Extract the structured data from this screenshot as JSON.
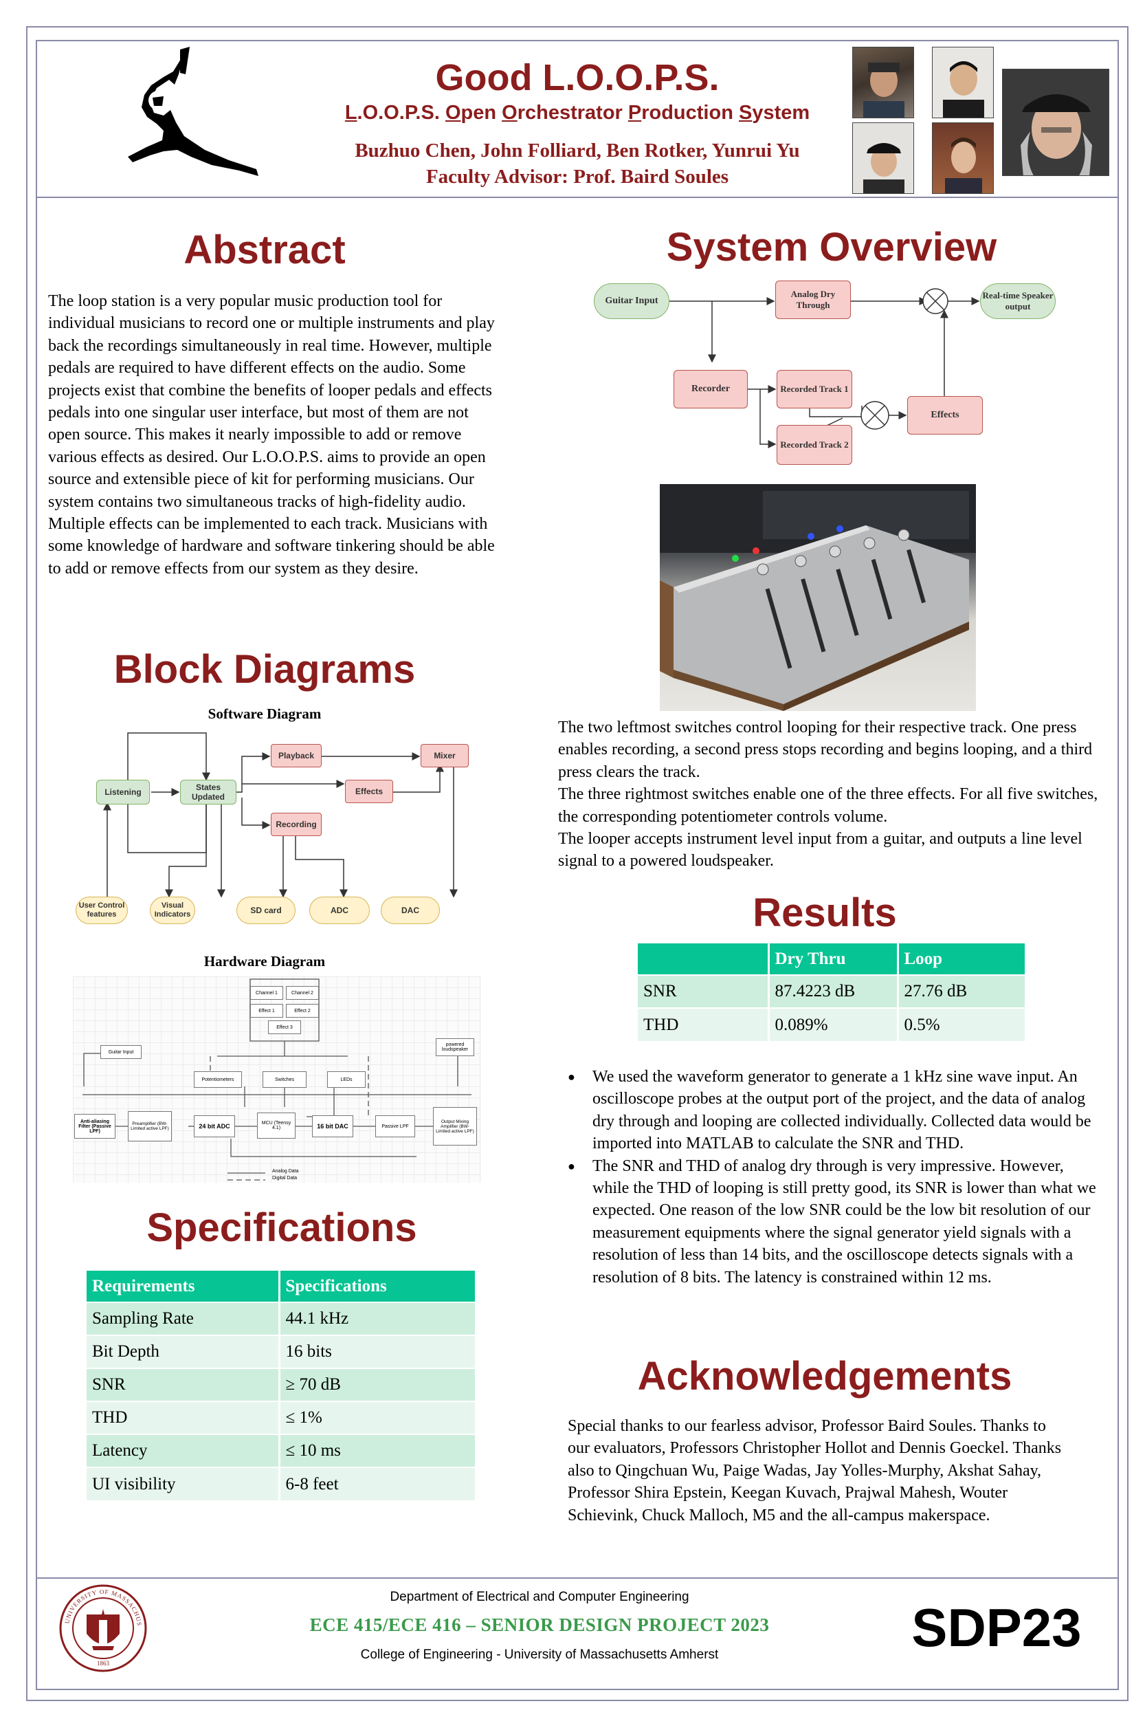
{
  "header": {
    "title": "Good L.O.O.P.S.",
    "subtitle_parts": [
      "L",
      ".O.O.P.S. ",
      "O",
      "pen ",
      "O",
      "rchestrator ",
      "P",
      "roduction ",
      "S",
      "ystem"
    ],
    "authors": "Buzhuo Chen, John Folliard, Ben Rotker, Yunrui Yu",
    "advisor": "Faculty Advisor: Prof. Baird Soules"
  },
  "abstract": {
    "title": "Abstract",
    "text": "The loop station is a very popular music production tool for individual musicians to record one or multiple instruments and play back the recordings simultaneously in real time. However, multiple pedals are required to have different effects on the audio. Some projects exist that combine the benefits of looper pedals and effects pedals into one singular user interface, but most of them are not open source. This makes it nearly impossible to add or remove various effects as desired. Our L.O.O.P.S. aims to provide an open source and extensible piece of kit for performing musicians. Our system contains two simultaneous tracks of high-fidelity audio. Multiple effects can be implemented to each track. Musicians with some knowledge of hardware and software tinkering should be able to add or remove effects from our system as they desire."
  },
  "block_diagrams": {
    "title": "Block Diagrams",
    "software_label": "Software Diagram",
    "software_nodes": {
      "listening": "Listening",
      "states_updated": "States Updated",
      "playback": "Playback",
      "effects": "Effects",
      "mixer": "Mixer",
      "recording": "Recording",
      "user_control": "User Control features",
      "visual_indicators": "Visual Indicators",
      "sd_card": "SD card",
      "adc": "ADC",
      "dac": "DAC"
    },
    "hardware_label": "Hardware Diagram",
    "hardware_nodes": {
      "channel1": "Channel 1",
      "channel2": "Channel 2",
      "effect1": "Effect 1",
      "effect2": "Effect 2",
      "effect3": "Effect 3",
      "guitar_input": "Guitar Input",
      "powered_loudspeaker": "powered loudspeaker",
      "potentiometers": "Potentiometers",
      "switches": "Switches",
      "leds": "LEDs",
      "anti_alias": "Anti-aliasing Filter (Passive LPF)",
      "preamplifier": "Preamplifier (BW-Limited active LPF)",
      "adc": "24 bit ADC",
      "mcu": "MCU (Teensy 4.1)",
      "dac": "16 bit DAC",
      "passive_lpf": "Passive LPF",
      "output_amp": "Output Mixing Amplifier (BW-Limited active LPF)",
      "legend_analog": "Analog Data",
      "legend_digital": "Digital Data"
    }
  },
  "specifications": {
    "title": "Specifications",
    "headers": [
      "Requirements",
      "Specifications"
    ],
    "rows": [
      [
        "Sampling Rate",
        "44.1 kHz"
      ],
      [
        "Bit Depth",
        "16 bits"
      ],
      [
        "SNR",
        "≥ 70 dB"
      ],
      [
        "THD",
        "≤ 1%"
      ],
      [
        "Latency",
        "≤ 10 ms"
      ],
      [
        "UI visibility",
        "6-8 feet"
      ]
    ]
  },
  "system_overview": {
    "title": "System Overview",
    "nodes": {
      "guitar_input": "Guitar Input",
      "analog_dry": "Analog Dry Through",
      "realtime_speaker": "Real-time Speaker output",
      "recorder": "Recorder",
      "track1": "Recorded Track 1",
      "track2": "Recorded Track 2",
      "effects": "Effects"
    },
    "description": [
      "The two leftmost switches control looping for their respective track. One press enables recording, a second press stops recording and begins looping, and a third press clears the track.",
      "The three rightmost switches enable one of the three effects. For all five switches, the corresponding potentiometer controls volume.",
      "The looper accepts instrument level input from a guitar, and outputs a line level signal to a powered loudspeaker."
    ]
  },
  "results": {
    "title": "Results",
    "headers": [
      "",
      "Dry Thru",
      "Loop"
    ],
    "rows": [
      [
        "SNR",
        "87.4223 dB",
        "27.76 dB"
      ],
      [
        "THD",
        "0.089%",
        "0.5%"
      ]
    ],
    "bullets": [
      "We used the waveform generator to generate a 1 kHz sine wave input. An oscilloscope probes at the output port of the project, and the data of analog dry through and looping are collected individually. Collected data would be imported into MATLAB to calculate the SNR and THD.",
      "The SNR and THD of analog dry through is very impressive. However, while the THD of looping is still pretty good, its SNR is lower than what we expected. One reason of the low SNR could be the low bit resolution of our measurement equipments where the signal generator yield signals with a resolution of less than 14 bits, and the oscilloscope detects signals with a resolution of 8 bits. The latency is constrained within 12 ms."
    ]
  },
  "acknowledgements": {
    "title": "Acknowledgements",
    "text": "Special thanks to our fearless advisor, Professor Baird Soules. Thanks to our evaluators, Professors Christopher Hollot and Dennis Goeckel. Thanks also to Qingchuan Wu, Paige Wadas, Jay Yolles-Murphy, Akshat Sahay, Professor Shira Epstein, Keegan Kuvach, Prajwal Mahesh, Wouter Schievink, Chuck Malloch, M5 and the all-campus makerspace."
  },
  "footer": {
    "department": "Department of Electrical and Computer Engineering",
    "course": "ECE 415/ECE 416 – SENIOR DESIGN PROJECT 2023",
    "college": "College of Engineering - University of Massachusetts Amherst",
    "badge": "SDP23",
    "seal_text": "UNIVERSITY OF MASSACHUSETTS",
    "seal_year": "1863"
  },
  "colors": {
    "maroon": "#8b1d1d",
    "table_header": "#06c493",
    "table_row_odd": "#cdeedd",
    "table_row_even": "#e6f6ee",
    "course_green": "#3a9a4a"
  }
}
